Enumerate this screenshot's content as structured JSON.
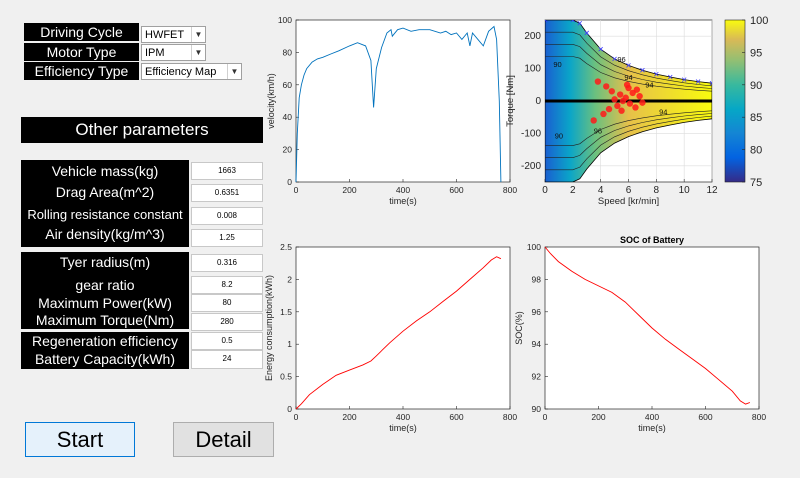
{
  "controls": {
    "driving_cycle_label": "Driving Cycle",
    "driving_cycle_value": "HWFET",
    "motor_type_label": "Motor Type",
    "motor_type_value": "IPM",
    "efficiency_type_label": "Efficiency Type",
    "efficiency_type_value": "Efficiency Map"
  },
  "other_params": {
    "heading": "Other parameters",
    "vehicle_mass_label": "Vehicle mass(kg)",
    "vehicle_mass_value": "1663",
    "drag_area_label": "Drag Area(m^2)",
    "drag_area_value": "0.6351",
    "rolling_resistance_label": "Rolling resistance constant",
    "rolling_resistance_value": "0.008",
    "air_density_label": "Air density(kg/m^3)",
    "air_density_value": "1.25",
    "tyre_radius_label": "Tyer radius(m)",
    "tyre_radius_value": "0.316",
    "gear_ratio_label": "gear ratio",
    "gear_ratio_value": "8.2",
    "max_power_label": "Maximum Power(kW)",
    "max_power_value": "80",
    "max_torque_label": "Maximum Torque(Nm)",
    "max_torque_value": "280",
    "regen_label": "Regeneration efficiency",
    "regen_value": "0.5",
    "battery_capacity_label": "Battery Capacity(kWh)",
    "battery_capacity_value": "24"
  },
  "buttons": {
    "start": "Start",
    "detail": "Detail"
  },
  "colors": {
    "velocity_line": "#0072bd",
    "energy_line": "#ff0000",
    "soc_line": "#ff0000"
  },
  "chart_data": [
    {
      "type": "line",
      "title": "",
      "xlabel": "time(s)",
      "ylabel": "velocity(km/h)",
      "xlim": [
        0,
        800
      ],
      "ylim": [
        0,
        100
      ],
      "xticks": [
        0,
        200,
        400,
        600,
        800
      ],
      "yticks": [
        0,
        20,
        40,
        60,
        80,
        100
      ],
      "x": [
        0,
        5,
        12,
        20,
        30,
        40,
        60,
        80,
        100,
        130,
        160,
        200,
        230,
        260,
        280,
        290,
        300,
        320,
        340,
        355,
        360,
        380,
        400,
        430,
        460,
        500,
        540,
        560,
        580,
        600,
        620,
        640,
        650,
        660,
        680,
        700,
        720,
        740,
        750,
        760,
        766
      ],
      "y": [
        0,
        30,
        52,
        60,
        66,
        70,
        74,
        76,
        77,
        79,
        81,
        84,
        86,
        84,
        75,
        46,
        70,
        83,
        92,
        94,
        90,
        94,
        95,
        93,
        94,
        94,
        92,
        93,
        91,
        92,
        88,
        92,
        84,
        92,
        88,
        84,
        93,
        96,
        88,
        50,
        0
      ]
    },
    {
      "type": "heatmap",
      "title": "",
      "xlabel": "Speed [kr/min]",
      "ylabel": "Torque [Nm]",
      "xlim": [
        0,
        12
      ],
      "ylim": [
        -250,
        250
      ],
      "xticks": [
        0,
        2,
        4,
        6,
        8,
        10,
        12
      ],
      "yticks": [
        -200,
        -100,
        0,
        100,
        200
      ],
      "colorbar_ticks": [
        75,
        80,
        85,
        90,
        95,
        100
      ],
      "colorbar_range": [
        75,
        100
      ],
      "contour_labels": [
        "96",
        "94",
        "94",
        "90",
        "90",
        "96",
        "94"
      ],
      "boundary_speed": [
        0,
        2,
        2.5,
        3,
        4,
        5,
        6,
        7,
        8,
        9,
        10,
        11,
        12
      ],
      "boundary_torque": [
        250,
        250,
        240,
        210,
        160,
        130,
        110,
        95,
        83,
        74,
        66,
        60,
        55
      ]
    },
    {
      "type": "line",
      "title": "",
      "xlabel": "time(s)",
      "ylabel": "Energy consumption(kWh)",
      "xlim": [
        0,
        800
      ],
      "ylim": [
        0,
        2.5
      ],
      "xticks": [
        0,
        200,
        400,
        600,
        800
      ],
      "yticks": [
        0,
        0.5,
        1,
        1.5,
        2,
        2.5
      ],
      "x": [
        0,
        20,
        50,
        100,
        150,
        200,
        250,
        280,
        300,
        350,
        400,
        450,
        500,
        550,
        600,
        650,
        700,
        730,
        750,
        766
      ],
      "y": [
        0,
        0.08,
        0.22,
        0.38,
        0.52,
        0.6,
        0.68,
        0.74,
        0.82,
        1.02,
        1.2,
        1.36,
        1.5,
        1.66,
        1.82,
        2.0,
        2.18,
        2.3,
        2.35,
        2.32
      ]
    },
    {
      "type": "line",
      "title": "SOC of Battery",
      "xlabel": "time(s)",
      "ylabel": "SOC(%)",
      "xlim": [
        0,
        800
      ],
      "ylim": [
        90,
        100
      ],
      "xticks": [
        0,
        200,
        400,
        600,
        800
      ],
      "yticks": [
        90,
        92,
        94,
        96,
        98,
        100
      ],
      "x": [
        0,
        20,
        50,
        100,
        150,
        200,
        250,
        300,
        350,
        400,
        450,
        500,
        550,
        600,
        650,
        700,
        730,
        750,
        766
      ],
      "y": [
        100,
        99.6,
        99.1,
        98.5,
        98.0,
        97.6,
        97.2,
        96.6,
        95.8,
        95.0,
        94.3,
        93.7,
        93.1,
        92.5,
        91.8,
        91.1,
        90.5,
        90.3,
        90.4
      ]
    }
  ]
}
